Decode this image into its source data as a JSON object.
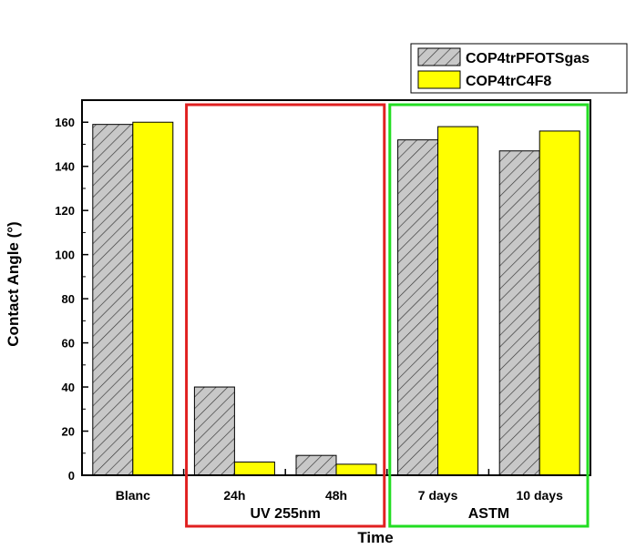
{
  "chart_data": {
    "type": "bar",
    "categories": [
      "Blanc",
      "24h",
      "48h",
      "7 days",
      "10 days"
    ],
    "series": [
      {
        "name": "COP4trPFOTSgas",
        "values": [
          159,
          40,
          9,
          152,
          147
        ],
        "fill": "hatched-gray",
        "color": "#c0c0c0"
      },
      {
        "name": "COP4trC4F8",
        "values": [
          160,
          6,
          5,
          158,
          156
        ],
        "color": "#ffff00"
      }
    ],
    "xlabel": "Time",
    "ylabel": "Contact Angle (°)",
    "ylim": [
      0,
      170
    ],
    "yticks": [
      0,
      20,
      40,
      60,
      80,
      100,
      120,
      140,
      160
    ],
    "legend_position": "top-right",
    "grid": false,
    "groups": [
      {
        "label": "UV 255nm",
        "categories": [
          "24h",
          "48h"
        ],
        "color": "#e02020"
      },
      {
        "label": "ASTM",
        "categories": [
          "7 days",
          "10 days"
        ],
        "color": "#22dd22"
      }
    ]
  }
}
